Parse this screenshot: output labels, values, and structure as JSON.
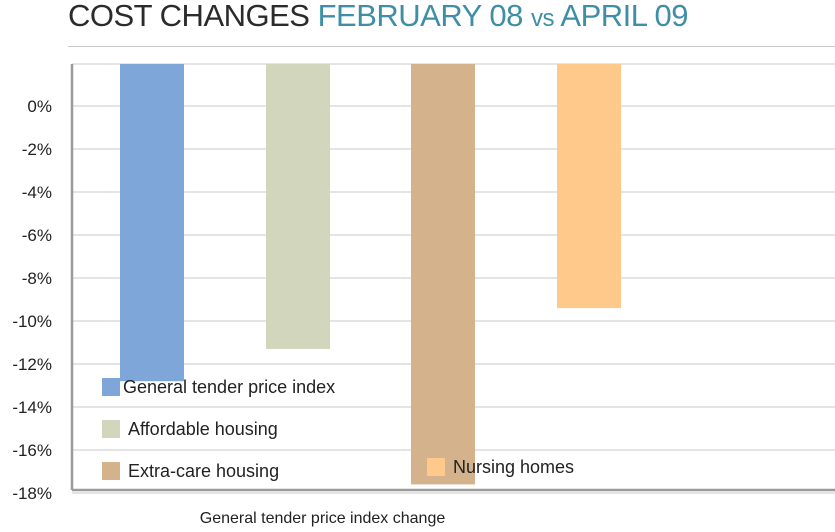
{
  "title": {
    "part1": "COST CHANGES",
    "part2_a": "FEBRUARY 08",
    "part2_vs": "vs",
    "part2_b": "APRIL 09"
  },
  "caption": "General tender price index change",
  "chart_data": {
    "type": "bar",
    "categories": [
      "General tender price index",
      "Affordable housing",
      "Extra-care housing",
      "Nursing homes"
    ],
    "values": [
      -12.8,
      -11.3,
      -17.6,
      -9.4
    ],
    "colors": [
      "#7fa6d9",
      "#d1d6bd",
      "#d4b28c",
      "#fec98a"
    ],
    "yticks": [
      0,
      -2,
      -4,
      -6,
      -8,
      -10,
      -12,
      -14,
      -16,
      -18
    ],
    "ytick_labels": [
      "0%",
      "-2%",
      "-4%",
      "-6%",
      "-8%",
      "-10%",
      "-12%",
      "-14%",
      "-16%",
      "-18%"
    ],
    "ylim": [
      -18,
      2
    ],
    "grid": true,
    "legend_position": "inside-bottom-left",
    "title": "",
    "xlabel": "General tender price index change",
    "ylabel": ""
  }
}
